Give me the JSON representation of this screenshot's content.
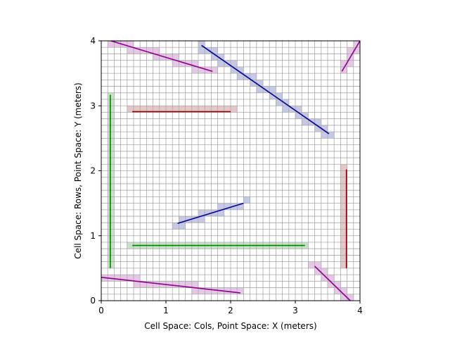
{
  "chart_data": {
    "type": "line",
    "title": "",
    "xlabel": "Cell Space: Cols, Point Space: X (meters)",
    "ylabel": "Cell Space: Rows, Point Space: Y (meters)",
    "xlim": [
      0,
      4
    ],
    "ylim": [
      0,
      4
    ],
    "xticks": [
      0,
      1,
      2,
      3,
      4
    ],
    "yticks": [
      0,
      1,
      2,
      3,
      4
    ],
    "grid": true,
    "cell_size": 0.1,
    "colors": {
      "grid": "#aaaaaa",
      "purple": "#8b008b",
      "navy": "#00008b",
      "darkred": "#8b0000",
      "green": "#008000"
    },
    "segments": [
      {
        "color": "purple",
        "x0": 0.15,
        "y0": 4.0,
        "x1": 1.72,
        "y1": 3.53
      },
      {
        "color": "navy",
        "x0": 1.55,
        "y0": 3.93,
        "x1": 3.52,
        "y1": 2.57
      },
      {
        "color": "purple",
        "x0": 3.72,
        "y0": 3.53,
        "x1": 4.0,
        "y1": 4.0
      },
      {
        "color": "darkred",
        "x0": 0.48,
        "y0": 2.91,
        "x1": 2.0,
        "y1": 2.91
      },
      {
        "color": "green",
        "x0": 0.14,
        "y0": 3.17,
        "x1": 0.14,
        "y1": 0.5
      },
      {
        "color": "darkred",
        "x0": 3.79,
        "y0": 2.02,
        "x1": 3.79,
        "y1": 0.5
      },
      {
        "color": "navy",
        "x0": 1.18,
        "y0": 1.19,
        "x1": 2.2,
        "y1": 1.5
      },
      {
        "color": "green",
        "x0": 0.48,
        "y0": 0.85,
        "x1": 3.15,
        "y1": 0.85
      },
      {
        "color": "purple",
        "x0": 0.0,
        "y0": 0.36,
        "x1": 2.15,
        "y1": 0.12
      },
      {
        "color": "purple",
        "x0": 3.3,
        "y0": 0.53,
        "x1": 3.85,
        "y1": 0.0
      }
    ]
  }
}
